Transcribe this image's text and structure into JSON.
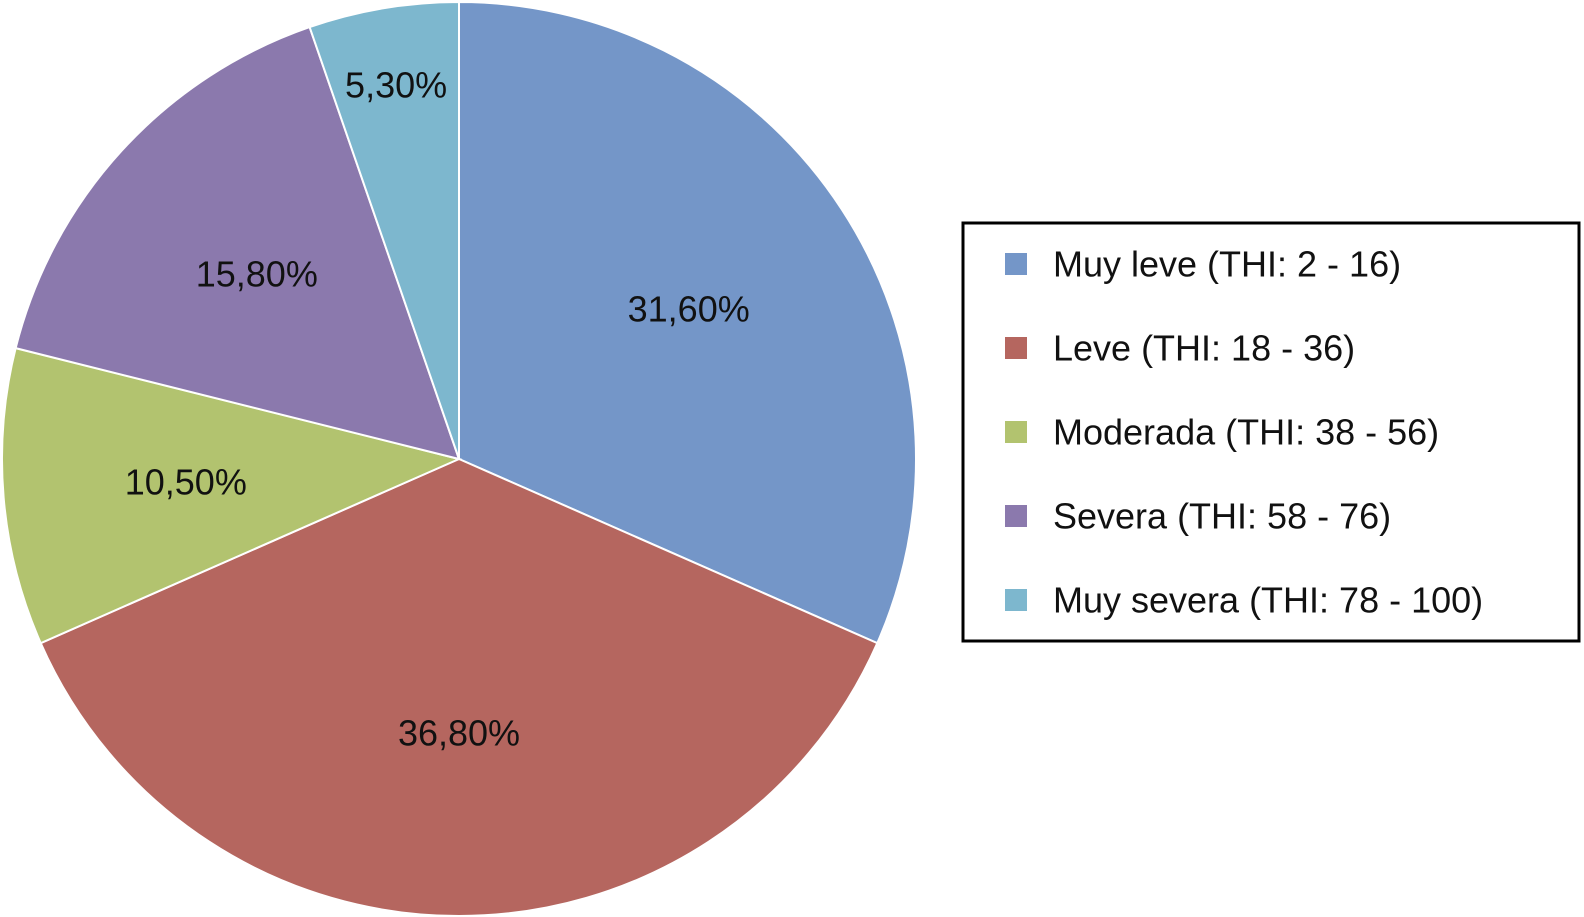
{
  "chart_data": {
    "type": "pie",
    "title": "",
    "legend_position": "right",
    "slices": [
      {
        "name": "Muy leve (THI: 2 - 16)",
        "value": 31.6,
        "label": "31,60%",
        "color": "#7496c8"
      },
      {
        "name": "Leve (THI: 18 - 36)",
        "value": 36.8,
        "label": "36,80%",
        "color": "#b5665f"
      },
      {
        "name": "Moderada (THI: 38 - 56)",
        "value": 10.5,
        "label": "10,50%",
        "color": "#b2c36f"
      },
      {
        "name": "Severa (THI: 58 - 76)",
        "value": 15.8,
        "label": "15,80%",
        "color": "#8b79ad"
      },
      {
        "name": "Muy severa (THI: 78 - 100)",
        "value": 5.3,
        "label": "5,30%",
        "color": "#7db7ce"
      }
    ]
  }
}
